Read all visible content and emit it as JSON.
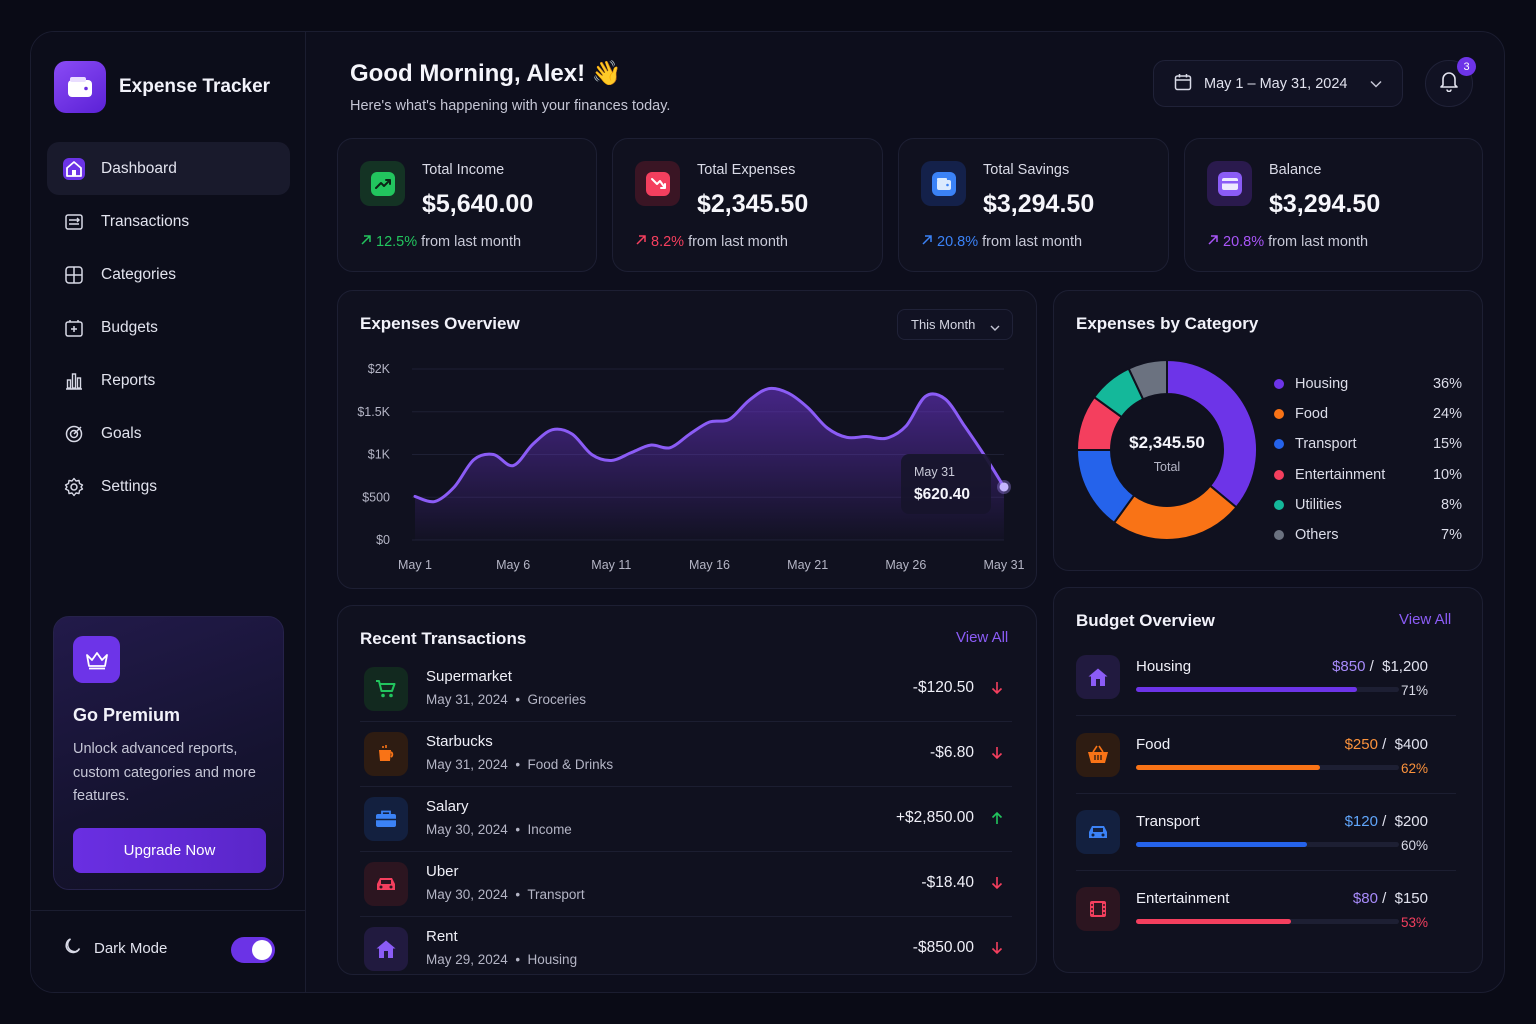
{
  "app": {
    "name": "Expense Tracker"
  },
  "nav": {
    "items": [
      {
        "label": "Dashboard",
        "icon": "home-icon",
        "active": true
      },
      {
        "label": "Transactions",
        "icon": "transactions-icon"
      },
      {
        "label": "Categories",
        "icon": "categories-icon"
      },
      {
        "label": "Budgets",
        "icon": "budget-icon"
      },
      {
        "label": "Reports",
        "icon": "reports-icon"
      },
      {
        "label": "Goals",
        "icon": "target-icon"
      },
      {
        "label": "Settings",
        "icon": "gear-icon"
      }
    ]
  },
  "premium": {
    "title": "Go Premium",
    "text": "Unlock advanced reports, custom categories and more features.",
    "button": "Upgrade Now"
  },
  "dark_mode": {
    "label": "Dark Mode",
    "enabled": true
  },
  "header": {
    "greeting": "Good Morning, Alex! 👋",
    "subtitle": "Here's what's happening with your finances today.",
    "date_range": "May 1 – May 31, 2024",
    "notifications": "3"
  },
  "stats": [
    {
      "label": "Total Income",
      "value": "$5,640.00",
      "change": "12.5%",
      "suffix": "from last month",
      "color": "#22c55e",
      "icon": "trending-up-icon"
    },
    {
      "label": "Total Expenses",
      "value": "$2,345.50",
      "change": "8.2%",
      "suffix": "from last month",
      "color": "#f43f5e",
      "icon": "trending-down-icon"
    },
    {
      "label": "Total Savings",
      "value": "$3,294.50",
      "change": "20.8%",
      "suffix": "from last month",
      "color": "#3b82f6",
      "icon": "wallet-icon"
    },
    {
      "label": "Balance",
      "value": "$3,294.50",
      "change": "20.8%",
      "suffix": "from last month",
      "color": "#a855f7",
      "icon": "card-icon"
    }
  ],
  "expenses_overview": {
    "title": "Expenses Overview",
    "range": "This Month",
    "tooltip": {
      "date": "May 31",
      "value": "$620.40"
    }
  },
  "chart_data": {
    "type": "area",
    "title": "Expenses Overview",
    "y_ticks": [
      "$2K",
      "$1.5K",
      "$1K",
      "$500",
      "$0"
    ],
    "ylim": [
      0,
      2000
    ],
    "x_ticks": [
      "May 1",
      "May 6",
      "May 11",
      "May 16",
      "May 21",
      "May 26",
      "May 31"
    ],
    "x": [
      1,
      2,
      3,
      4,
      5,
      6,
      7,
      8,
      9,
      10,
      11,
      12,
      13,
      14,
      15,
      16,
      17,
      18,
      19,
      20,
      21,
      22,
      23,
      24,
      25,
      26,
      27,
      28,
      29,
      30,
      31
    ],
    "values": [
      510,
      450,
      620,
      940,
      1000,
      870,
      1120,
      1290,
      1240,
      1000,
      930,
      1020,
      1110,
      1080,
      1240,
      1380,
      1410,
      1630,
      1770,
      1720,
      1550,
      1310,
      1200,
      1210,
      1190,
      1330,
      1680,
      1650,
      1330,
      990,
      620
    ],
    "color": "#8b5cf6"
  },
  "category_chart": {
    "title": "Expenses by Category",
    "total_value": "$2,345.50",
    "total_label": "Total",
    "type": "pie",
    "slices": [
      {
        "name": "Housing",
        "pct": "36%",
        "value": 36,
        "color": "#6d34e8"
      },
      {
        "name": "Food",
        "pct": "24%",
        "value": 24,
        "color": "#f97316"
      },
      {
        "name": "Transport",
        "pct": "15%",
        "value": 15,
        "color": "#2563eb"
      },
      {
        "name": "Entertainment",
        "pct": "10%",
        "value": 10,
        "color": "#f43f5e"
      },
      {
        "name": "Utilities",
        "pct": "8%",
        "value": 8,
        "color": "#14b89a"
      },
      {
        "name": "Others",
        "pct": "7%",
        "value": 7,
        "color": "#6b7280"
      }
    ]
  },
  "transactions": {
    "title": "Recent Transactions",
    "view_all": "View All",
    "items": [
      {
        "name": "Supermarket",
        "date": "May 31, 2024",
        "category": "Groceries",
        "amount": "-$120.50",
        "direction": "down",
        "icon": "cart-icon",
        "color": "#22c55e",
        "bg": "#12291f"
      },
      {
        "name": "Starbucks",
        "date": "May 31, 2024",
        "category": "Food & Drinks",
        "amount": "-$6.80",
        "direction": "down",
        "icon": "coffee-icon",
        "color": "#f97316",
        "bg": "#2e1c12"
      },
      {
        "name": "Salary",
        "date": "May 30, 2024",
        "category": "Income",
        "amount": "+$2,850.00",
        "direction": "up",
        "icon": "briefcase-icon",
        "color": "#3b82f6",
        "bg": "#13203f"
      },
      {
        "name": "Uber",
        "date": "May 30, 2024",
        "category": "Transport",
        "amount": "-$18.40",
        "direction": "down",
        "icon": "car-icon",
        "color": "#f43f5e",
        "bg": "#2c1520"
      },
      {
        "name": "Rent",
        "date": "May 29, 2024",
        "category": "Housing",
        "amount": "-$850.00",
        "direction": "down",
        "icon": "house-icon",
        "color": "#8b5cf6",
        "bg": "#211a3f"
      }
    ]
  },
  "budget": {
    "title": "Budget Overview",
    "view_all": "View All",
    "items": [
      {
        "name": "Housing",
        "spent": "$850",
        "limit": "$1,200",
        "pct": "71%",
        "fraction": 0.71,
        "color": "#6d34e8",
        "spent_color": "#a78bfa",
        "pct_color": "#d9dae6",
        "icon": "house-icon",
        "bg": "#211a3f",
        "icon_color": "#8b5cf6"
      },
      {
        "name": "Food",
        "spent": "$250",
        "limit": "$400",
        "pct": "62%",
        "fraction": 0.62,
        "color": "#f97316",
        "spent_color": "#fb923c",
        "pct_color": "#fb923c",
        "icon": "basket-icon",
        "bg": "#2e1c12",
        "icon_color": "#f97316"
      },
      {
        "name": "Transport",
        "spent": "$120",
        "limit": "$200",
        "pct": "60%",
        "fraction": 0.6,
        "color": "#2563eb",
        "spent_color": "#60a5fa",
        "pct_color": "#d9dae6",
        "icon": "car-icon",
        "bg": "#13203f",
        "icon_color": "#3b82f6"
      },
      {
        "name": "Entertainment",
        "spent": "$80",
        "limit": "$150",
        "pct": "53%",
        "fraction": 0.53,
        "color": "#f43f5e",
        "spent_color": "#a78bfa",
        "pct_color": "#f43f5e",
        "icon": "film-icon",
        "bg": "#2c1520",
        "icon_color": "#f43f5e"
      }
    ]
  }
}
